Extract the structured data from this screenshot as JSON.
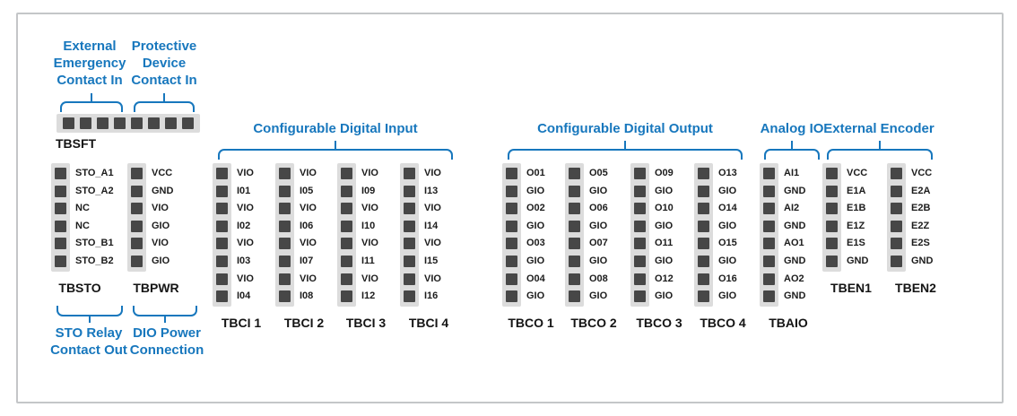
{
  "colors": {
    "accent_blue": "#1777bd",
    "pin_dark": "#474747",
    "strip_gray": "#dcdcdc",
    "text_black": "#141414",
    "frame_border": "#c4c6c8"
  },
  "tbsft": {
    "name": "TBSFT",
    "pin_count": 8,
    "bracket_labels": [
      {
        "lines": [
          "External",
          "Emergency",
          "Contact In"
        ]
      },
      {
        "lines": [
          "Protective",
          "Device",
          "Contact In"
        ]
      }
    ]
  },
  "group_headers": [
    {
      "id": "digital-input",
      "label": "Configurable Digital Input"
    },
    {
      "id": "digital-output",
      "label": "Configurable Digital Output"
    },
    {
      "id": "analog-io",
      "label": "Analog IO"
    },
    {
      "id": "external-encoder",
      "label": "External Encoder"
    }
  ],
  "bottom_labels": [
    {
      "id": "sto-relay-contact-out",
      "lines": [
        "STO Relay",
        "Contact Out"
      ]
    },
    {
      "id": "dio-power-connection",
      "lines": [
        "DIO Power",
        "Connection"
      ]
    }
  ],
  "terminal_blocks": [
    {
      "id": "tbsto",
      "name": "TBSTO",
      "pins": [
        "STO_A1",
        "STO_A2",
        "NC",
        "NC",
        "STO_B1",
        "STO_B2"
      ]
    },
    {
      "id": "tbpwr",
      "name": "TBPWR",
      "pins": [
        "VCC",
        "GND",
        "VIO",
        "GIO",
        "VIO",
        "GIO"
      ]
    },
    {
      "id": "tbci1",
      "name": "TBCI 1",
      "pins": [
        "VIO",
        "I01",
        "VIO",
        "I02",
        "VIO",
        "I03",
        "VIO",
        "I04"
      ]
    },
    {
      "id": "tbci2",
      "name": "TBCI 2",
      "pins": [
        "VIO",
        "I05",
        "VIO",
        "I06",
        "VIO",
        "I07",
        "VIO",
        "I08"
      ]
    },
    {
      "id": "tbci3",
      "name": "TBCI 3",
      "pins": [
        "VIO",
        "I09",
        "VIO",
        "I10",
        "VIO",
        "I11",
        "VIO",
        "I12"
      ]
    },
    {
      "id": "tbci4",
      "name": "TBCI 4",
      "pins": [
        "VIO",
        "I13",
        "VIO",
        "I14",
        "VIO",
        "I15",
        "VIO",
        "I16"
      ]
    },
    {
      "id": "tbco1",
      "name": "TBCO 1",
      "pins": [
        "O01",
        "GIO",
        "O02",
        "GIO",
        "O03",
        "GIO",
        "O04",
        "GIO"
      ]
    },
    {
      "id": "tbco2",
      "name": "TBCO 2",
      "pins": [
        "O05",
        "GIO",
        "O06",
        "GIO",
        "O07",
        "GIO",
        "O08",
        "GIO"
      ]
    },
    {
      "id": "tbco3",
      "name": "TBCO 3",
      "pins": [
        "O09",
        "GIO",
        "O10",
        "GIO",
        "O11",
        "GIO",
        "O12",
        "GIO"
      ]
    },
    {
      "id": "tbco4",
      "name": "TBCO 4",
      "pins": [
        "O13",
        "GIO",
        "O14",
        "GIO",
        "O15",
        "GIO",
        "O16",
        "GIO"
      ]
    },
    {
      "id": "tbaio",
      "name": "TBAIO",
      "pins": [
        "AI1",
        "GND",
        "AI2",
        "GND",
        "AO1",
        "GND",
        "AO2",
        "GND"
      ]
    },
    {
      "id": "tben1",
      "name": "TBEN1",
      "pins": [
        "VCC",
        "E1A",
        "E1B",
        "E1Z",
        "E1S",
        "GND"
      ]
    },
    {
      "id": "tben2",
      "name": "TBEN2",
      "pins": [
        "VCC",
        "E2A",
        "E2B",
        "E2Z",
        "E2S",
        "GND"
      ]
    }
  ]
}
